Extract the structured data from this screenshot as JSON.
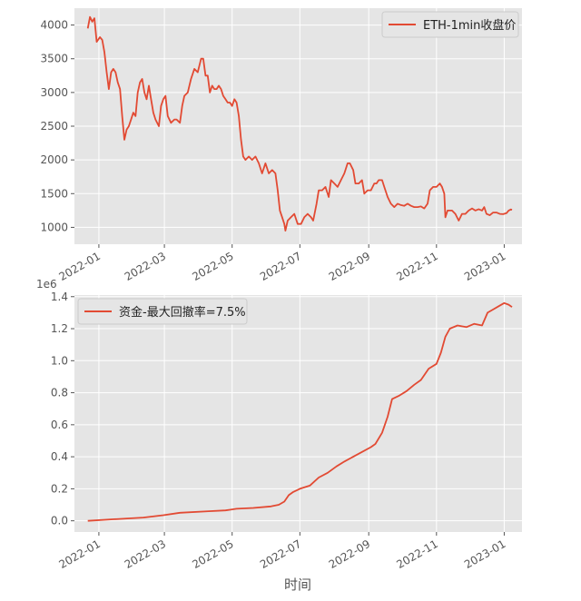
{
  "chart_data": [
    {
      "type": "line",
      "title": "",
      "xlabel": "时间",
      "ylabel": "",
      "x_ticks": [
        "2022-01",
        "2022-03",
        "2022-05",
        "2022-07",
        "2022-09",
        "2022-11",
        "2023-01"
      ],
      "y_ticks": [
        "1000",
        "1500",
        "2000",
        "2500",
        "3000",
        "3500",
        "4000"
      ],
      "ylim": [
        750,
        4250
      ],
      "xlim": [
        "2021-12-10",
        "2023-01-17"
      ],
      "y_offset_text": "1e6",
      "legend_position": "upper right",
      "grid": true,
      "series": [
        {
          "name": "ETH-1min收盘价",
          "color": "#E24A33",
          "points": [
            [
              "2021-12-22",
              3950
            ],
            [
              "2021-12-24",
              4120
            ],
            [
              "2021-12-26",
              4050
            ],
            [
              "2021-12-28",
              4100
            ],
            [
              "2021-12-30",
              3750
            ],
            [
              "2022-01-02",
              3820
            ],
            [
              "2022-01-04",
              3780
            ],
            [
              "2022-01-06",
              3600
            ],
            [
              "2022-01-08",
              3300
            ],
            [
              "2022-01-10",
              3050
            ],
            [
              "2022-01-12",
              3300
            ],
            [
              "2022-01-14",
              3350
            ],
            [
              "2022-01-16",
              3300
            ],
            [
              "2022-01-18",
              3150
            ],
            [
              "2022-01-20",
              3050
            ],
            [
              "2022-01-22",
              2650
            ],
            [
              "2022-01-24",
              2300
            ],
            [
              "2022-01-26",
              2450
            ],
            [
              "2022-01-28",
              2500
            ],
            [
              "2022-01-30",
              2600
            ],
            [
              "2022-02-01",
              2700
            ],
            [
              "2022-02-03",
              2650
            ],
            [
              "2022-02-05",
              3000
            ],
            [
              "2022-02-07",
              3150
            ],
            [
              "2022-02-09",
              3200
            ],
            [
              "2022-02-11",
              3000
            ],
            [
              "2022-02-13",
              2900
            ],
            [
              "2022-02-15",
              3100
            ],
            [
              "2022-02-17",
              2900
            ],
            [
              "2022-02-19",
              2700
            ],
            [
              "2022-02-21",
              2600
            ],
            [
              "2022-02-24",
              2500
            ],
            [
              "2022-02-26",
              2800
            ],
            [
              "2022-02-28",
              2900
            ],
            [
              "2022-03-02",
              2950
            ],
            [
              "2022-03-04",
              2650
            ],
            [
              "2022-03-07",
              2550
            ],
            [
              "2022-03-10",
              2600
            ],
            [
              "2022-03-12",
              2600
            ],
            [
              "2022-03-15",
              2550
            ],
            [
              "2022-03-17",
              2800
            ],
            [
              "2022-03-19",
              2950
            ],
            [
              "2022-03-22",
              3000
            ],
            [
              "2022-03-25",
              3200
            ],
            [
              "2022-03-28",
              3350
            ],
            [
              "2022-03-31",
              3300
            ],
            [
              "2022-04-03",
              3500
            ],
            [
              "2022-04-05",
              3500
            ],
            [
              "2022-04-07",
              3250
            ],
            [
              "2022-04-09",
              3250
            ],
            [
              "2022-04-11",
              3000
            ],
            [
              "2022-04-13",
              3100
            ],
            [
              "2022-04-15",
              3050
            ],
            [
              "2022-04-17",
              3050
            ],
            [
              "2022-04-19",
              3100
            ],
            [
              "2022-04-21",
              3050
            ],
            [
              "2022-04-23",
              2950
            ],
            [
              "2022-04-25",
              2900
            ],
            [
              "2022-04-27",
              2850
            ],
            [
              "2022-04-29",
              2850
            ],
            [
              "2022-05-01",
              2800
            ],
            [
              "2022-05-03",
              2900
            ],
            [
              "2022-05-05",
              2850
            ],
            [
              "2022-05-07",
              2650
            ],
            [
              "2022-05-09",
              2300
            ],
            [
              "2022-05-11",
              2050
            ],
            [
              "2022-05-13",
              2000
            ],
            [
              "2022-05-16",
              2050
            ],
            [
              "2022-05-19",
              2000
            ],
            [
              "2022-05-22",
              2050
            ],
            [
              "2022-05-25",
              1950
            ],
            [
              "2022-05-28",
              1800
            ],
            [
              "2022-05-31",
              1950
            ],
            [
              "2022-06-03",
              1800
            ],
            [
              "2022-06-06",
              1850
            ],
            [
              "2022-06-09",
              1800
            ],
            [
              "2022-06-11",
              1550
            ],
            [
              "2022-06-13",
              1250
            ],
            [
              "2022-06-15",
              1150
            ],
            [
              "2022-06-17",
              1050
            ],
            [
              "2022-06-18",
              950
            ],
            [
              "2022-06-20",
              1100
            ],
            [
              "2022-06-23",
              1150
            ],
            [
              "2022-06-26",
              1200
            ],
            [
              "2022-06-29",
              1050
            ],
            [
              "2022-07-02",
              1050
            ],
            [
              "2022-07-05",
              1150
            ],
            [
              "2022-07-08",
              1200
            ],
            [
              "2022-07-11",
              1150
            ],
            [
              "2022-07-13",
              1100
            ],
            [
              "2022-07-16",
              1350
            ],
            [
              "2022-07-18",
              1550
            ],
            [
              "2022-07-21",
              1550
            ],
            [
              "2022-07-24",
              1600
            ],
            [
              "2022-07-27",
              1450
            ],
            [
              "2022-07-29",
              1700
            ],
            [
              "2022-08-01",
              1650
            ],
            [
              "2022-08-04",
              1600
            ],
            [
              "2022-08-07",
              1700
            ],
            [
              "2022-08-10",
              1800
            ],
            [
              "2022-08-13",
              1950
            ],
            [
              "2022-08-15",
              1950
            ],
            [
              "2022-08-18",
              1850
            ],
            [
              "2022-08-20",
              1650
            ],
            [
              "2022-08-23",
              1650
            ],
            [
              "2022-08-26",
              1700
            ],
            [
              "2022-08-28",
              1500
            ],
            [
              "2022-08-31",
              1550
            ],
            [
              "2022-09-03",
              1550
            ],
            [
              "2022-09-06",
              1650
            ],
            [
              "2022-09-08",
              1650
            ],
            [
              "2022-09-10",
              1700
            ],
            [
              "2022-09-13",
              1700
            ],
            [
              "2022-09-15",
              1600
            ],
            [
              "2022-09-18",
              1450
            ],
            [
              "2022-09-21",
              1350
            ],
            [
              "2022-09-24",
              1300
            ],
            [
              "2022-09-27",
              1350
            ],
            [
              "2022-09-30",
              1330
            ],
            [
              "2022-10-03",
              1320
            ],
            [
              "2022-10-06",
              1350
            ],
            [
              "2022-10-09",
              1320
            ],
            [
              "2022-10-12",
              1300
            ],
            [
              "2022-10-15",
              1300
            ],
            [
              "2022-10-18",
              1310
            ],
            [
              "2022-10-21",
              1280
            ],
            [
              "2022-10-24",
              1350
            ],
            [
              "2022-10-26",
              1550
            ],
            [
              "2022-10-29",
              1600
            ],
            [
              "2022-11-01",
              1600
            ],
            [
              "2022-11-04",
              1650
            ],
            [
              "2022-11-06",
              1600
            ],
            [
              "2022-11-08",
              1500
            ],
            [
              "2022-11-09",
              1150
            ],
            [
              "2022-11-11",
              1250
            ],
            [
              "2022-11-13",
              1250
            ],
            [
              "2022-11-15",
              1250
            ],
            [
              "2022-11-18",
              1200
            ],
            [
              "2022-11-21",
              1100
            ],
            [
              "2022-11-24",
              1200
            ],
            [
              "2022-11-27",
              1200
            ],
            [
              "2022-11-30",
              1250
            ],
            [
              "2022-12-03",
              1280
            ],
            [
              "2022-12-06",
              1250
            ],
            [
              "2022-12-09",
              1270
            ],
            [
              "2022-12-12",
              1250
            ],
            [
              "2022-12-14",
              1300
            ],
            [
              "2022-12-16",
              1200
            ],
            [
              "2022-12-19",
              1180
            ],
            [
              "2022-12-22",
              1220
            ],
            [
              "2022-12-25",
              1220
            ],
            [
              "2022-12-28",
              1200
            ],
            [
              "2022-12-31",
              1195
            ],
            [
              "2023-01-03",
              1210
            ],
            [
              "2023-01-05",
              1250
            ],
            [
              "2023-01-07",
              1265
            ],
            [
              "2023-01-08",
              1260
            ]
          ]
        }
      ]
    },
    {
      "type": "line",
      "title": "",
      "xlabel": "时间",
      "ylabel": "",
      "x_ticks": [
        "2022-01",
        "2022-03",
        "2022-05",
        "2022-07",
        "2022-09",
        "2022-11",
        "2023-01"
      ],
      "y_ticks": [
        "0.0",
        "0.2",
        "0.4",
        "0.6",
        "0.8",
        "1.0",
        "1.2",
        "1.4"
      ],
      "ylim": [
        -0.07,
        1.41
      ],
      "xlim": [
        "2021-12-10",
        "2023-01-17"
      ],
      "legend_position": "upper left",
      "grid": true,
      "series": [
        {
          "name": "资金-最大回撤率=7.5%",
          "color": "#E24A33",
          "points": [
            [
              "2021-12-22",
              0.0
            ],
            [
              "2022-01-15",
              0.01
            ],
            [
              "2022-02-10",
              0.02
            ],
            [
              "2022-02-28",
              0.035
            ],
            [
              "2022-03-15",
              0.05
            ],
            [
              "2022-04-10",
              0.06
            ],
            [
              "2022-04-25",
              0.065
            ],
            [
              "2022-05-05",
              0.075
            ],
            [
              "2022-05-20",
              0.08
            ],
            [
              "2022-06-05",
              0.09
            ],
            [
              "2022-06-12",
              0.1
            ],
            [
              "2022-06-17",
              0.12
            ],
            [
              "2022-06-21",
              0.16
            ],
            [
              "2022-06-25",
              0.18
            ],
            [
              "2022-07-01",
              0.2
            ],
            [
              "2022-07-10",
              0.22
            ],
            [
              "2022-07-18",
              0.27
            ],
            [
              "2022-07-26",
              0.3
            ],
            [
              "2022-08-03",
              0.34
            ],
            [
              "2022-08-10",
              0.37
            ],
            [
              "2022-08-18",
              0.4
            ],
            [
              "2022-08-26",
              0.43
            ],
            [
              "2022-09-03",
              0.46
            ],
            [
              "2022-09-07",
              0.48
            ],
            [
              "2022-09-13",
              0.55
            ],
            [
              "2022-09-18",
              0.65
            ],
            [
              "2022-09-22",
              0.76
            ],
            [
              "2022-09-28",
              0.78
            ],
            [
              "2022-10-05",
              0.81
            ],
            [
              "2022-10-12",
              0.85
            ],
            [
              "2022-10-18",
              0.88
            ],
            [
              "2022-10-25",
              0.95
            ],
            [
              "2022-11-01",
              0.98
            ],
            [
              "2022-11-05",
              1.05
            ],
            [
              "2022-11-09",
              1.15
            ],
            [
              "2022-11-13",
              1.2
            ],
            [
              "2022-11-20",
              1.22
            ],
            [
              "2022-11-28",
              1.21
            ],
            [
              "2022-12-05",
              1.23
            ],
            [
              "2022-12-12",
              1.22
            ],
            [
              "2022-12-17",
              1.3
            ],
            [
              "2022-12-22",
              1.32
            ],
            [
              "2022-12-27",
              1.34
            ],
            [
              "2023-01-01",
              1.36
            ],
            [
              "2023-01-05",
              1.35
            ],
            [
              "2023-01-08",
              1.335
            ]
          ]
        }
      ]
    }
  ],
  "style": {
    "axes_bg": "#E5E5E5",
    "grid_color": "#FFFFFF",
    "tick_color": "#555555",
    "line_color": "#E24A33"
  }
}
